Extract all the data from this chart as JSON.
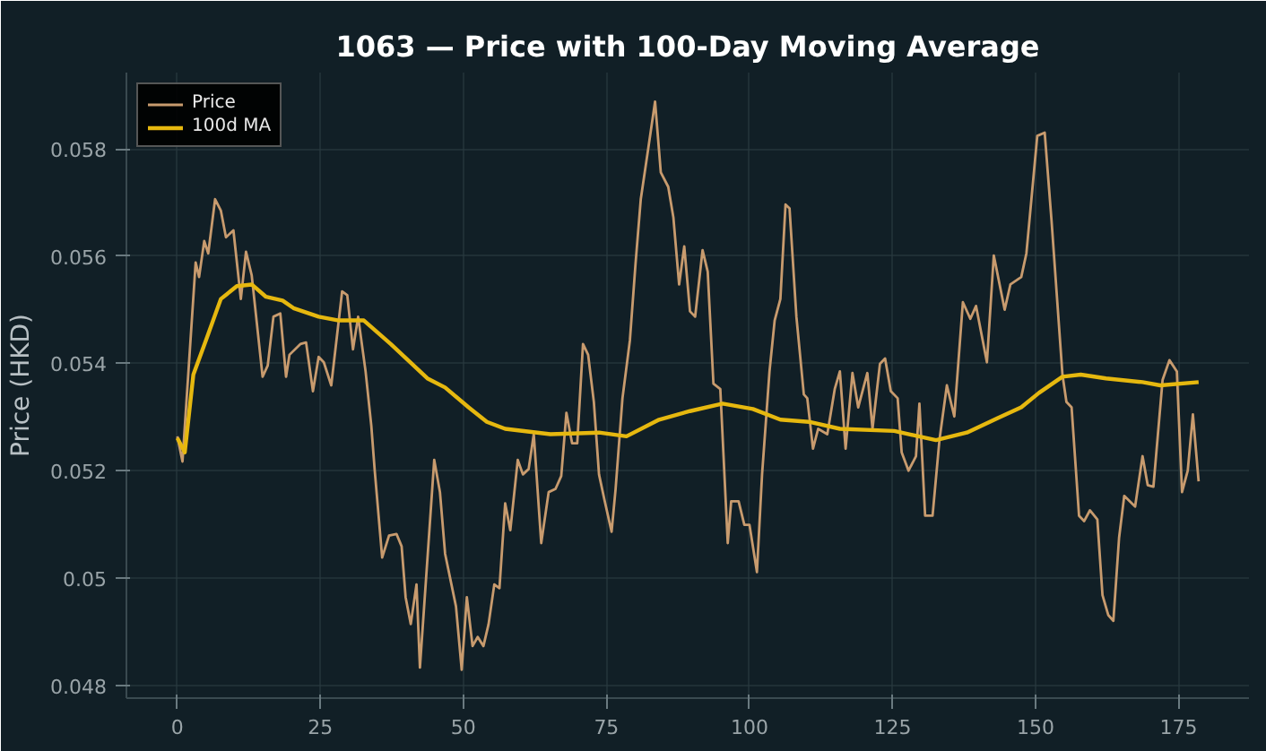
{
  "chart_data": {
    "type": "line",
    "title": "1063 — Price with 100-Day Moving Average",
    "ylabel": "Price (HKD)",
    "xlim": [
      -8.9,
      187.3
    ],
    "ylim": [
      0.04776,
      0.05942
    ],
    "xticks": [
      0,
      25,
      50,
      75,
      100,
      125,
      150,
      175
    ],
    "yticks": [
      0.048,
      0.05,
      0.052,
      0.054,
      0.056,
      0.058
    ],
    "grid": true,
    "legend": "top left",
    "line_style": "solid",
    "marker": "none",
    "series": [
      {
        "name": "Price",
        "color": "#c89b6e",
        "x": [
          0,
          0.9,
          3.2,
          3.8,
          4.7,
          5.4,
          6.6,
          7.6,
          8.5,
          9.8,
          11.1,
          12.0,
          13.0,
          14.9,
          15.8,
          16.8,
          18.0,
          19.0,
          19.6,
          21.5,
          22.5,
          23.7,
          24.7,
          25.6,
          26.9,
          28.8,
          29.7,
          30.7,
          31.6,
          32.9,
          33.9,
          34.5,
          35.8,
          37.0,
          38.3,
          39.2,
          39.9,
          40.8,
          41.8,
          42.4,
          44.9,
          45.9,
          46.8,
          48.7,
          49.7,
          50.6,
          51.6,
          52.5,
          53.5,
          54.4,
          55.4,
          56.3,
          57.3,
          58.2,
          59.5,
          60.4,
          61.4,
          62.3,
          63.6,
          64.9,
          66.1,
          67.1,
          68.0,
          69.0,
          69.9,
          70.9,
          71.8,
          72.8,
          73.7,
          74.7,
          75.9,
          76.6,
          77.8,
          79.1,
          80.1,
          81.0,
          82.3,
          83.5,
          84.5,
          85.8,
          86.7,
          87.7,
          88.6,
          89.6,
          90.5,
          91.8,
          92.7,
          93.7,
          94.9,
          96.2,
          96.8,
          98.1,
          99.1,
          100.0,
          101.3,
          102.2,
          103.5,
          104.4,
          105.4,
          106.3,
          107.0,
          108.2,
          109.5,
          110.1,
          111.1,
          112.0,
          113.6,
          114.9,
          115.8,
          116.8,
          118.0,
          119.0,
          120.6,
          121.5,
          122.8,
          123.7,
          124.7,
          125.9,
          126.6,
          127.8,
          129.1,
          129.7,
          130.7,
          132.0,
          133.2,
          134.5,
          135.8,
          137.3,
          138.6,
          139.6,
          141.5,
          142.7,
          144.6,
          145.6,
          147.5,
          148.4,
          150.3,
          151.6,
          152.8,
          154.7,
          155.4,
          156.3,
          157.6,
          158.5,
          159.5,
          160.8,
          161.7,
          162.7,
          163.6,
          164.6,
          165.5,
          167.4,
          168.7,
          169.6,
          170.6,
          172.2,
          173.4,
          174.7,
          175.6,
          176.6,
          177.5,
          178.5
        ],
        "values": [
          0.05264,
          0.05217,
          0.05588,
          0.05561,
          0.05628,
          0.05605,
          0.05706,
          0.05685,
          0.05635,
          0.05648,
          0.0552,
          0.05608,
          0.05564,
          0.05375,
          0.05396,
          0.05487,
          0.05493,
          0.05375,
          0.05416,
          0.05436,
          0.05439,
          0.05348,
          0.05412,
          0.05402,
          0.05359,
          0.05534,
          0.05527,
          0.05426,
          0.05487,
          0.05385,
          0.05284,
          0.052,
          0.05038,
          0.05079,
          0.05082,
          0.05059,
          0.04964,
          0.04914,
          0.04988,
          0.04833,
          0.0522,
          0.0516,
          0.05045,
          0.04947,
          0.04829,
          0.04964,
          0.04873,
          0.0489,
          0.04873,
          0.04914,
          0.04988,
          0.04981,
          0.05139,
          0.05089,
          0.0522,
          0.05193,
          0.05203,
          0.05268,
          0.05065,
          0.0516,
          0.05166,
          0.0519,
          0.05308,
          0.05251,
          0.05251,
          0.05436,
          0.05416,
          0.05328,
          0.05193,
          0.05143,
          0.05086,
          0.05166,
          0.05335,
          0.05443,
          0.05588,
          0.05706,
          0.058,
          0.05888,
          0.05756,
          0.05729,
          0.05672,
          0.05547,
          0.05618,
          0.05497,
          0.05487,
          0.05611,
          0.05571,
          0.05362,
          0.05352,
          0.05065,
          0.05143,
          0.05143,
          0.05099,
          0.05099,
          0.05011,
          0.05193,
          0.05385,
          0.0548,
          0.0552,
          0.05696,
          0.05689,
          0.05487,
          0.05342,
          0.05335,
          0.05241,
          0.05278,
          0.05268,
          0.05352,
          0.05385,
          0.05241,
          0.05382,
          0.05318,
          0.05382,
          0.05278,
          0.05399,
          0.05409,
          0.05348,
          0.05335,
          0.05234,
          0.052,
          0.05227,
          0.05325,
          0.05116,
          0.05116,
          0.05257,
          0.05359,
          0.05301,
          0.05514,
          0.05483,
          0.05507,
          0.05402,
          0.05601,
          0.055,
          0.05547,
          0.05561,
          0.05605,
          0.05824,
          0.0583,
          0.05665,
          0.05379,
          0.05328,
          0.05318,
          0.05116,
          0.05106,
          0.05126,
          0.05109,
          0.04968,
          0.04931,
          0.0492,
          0.05075,
          0.05153,
          0.05133,
          0.05227,
          0.05173,
          0.0517,
          0.05369,
          0.05406,
          0.05385,
          0.0516,
          0.052,
          0.05305,
          0.0518
        ]
      },
      {
        "name": "100d MA",
        "color": "#e6b80f",
        "x": [
          0,
          1.3,
          2.8,
          5.1,
          7.6,
          10.4,
          13.0,
          15.5,
          18.4,
          20.3,
          24.7,
          28.2,
          32.6,
          37.3,
          43.7,
          46.8,
          50.9,
          54.1,
          57.3,
          65.2,
          73.7,
          78.5,
          84.2,
          89.6,
          95.3,
          100.6,
          105.4,
          110.4,
          115.8,
          125.3,
          132.6,
          138.0,
          143.4,
          147.5,
          150.6,
          154.7,
          157.9,
          162.3,
          168.7,
          171.8,
          178.5
        ],
        "values": [
          0.05261,
          0.05234,
          0.05379,
          0.05446,
          0.0552,
          0.05544,
          0.05547,
          0.05524,
          0.05517,
          0.05503,
          0.05487,
          0.0548,
          0.0548,
          0.05436,
          0.05372,
          0.05355,
          0.05318,
          0.05291,
          0.05278,
          0.05268,
          0.05271,
          0.05264,
          0.05295,
          0.05311,
          0.05325,
          0.05315,
          0.05295,
          0.05291,
          0.05278,
          0.05274,
          0.05257,
          0.05271,
          0.05298,
          0.05318,
          0.05345,
          0.05375,
          0.05379,
          0.05372,
          0.05365,
          0.05359,
          0.05365
        ]
      }
    ]
  }
}
